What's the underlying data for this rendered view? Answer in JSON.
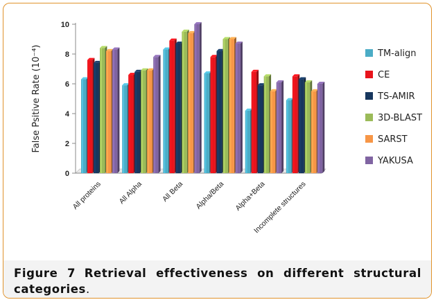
{
  "chart_data": {
    "type": "bar",
    "ylabel": "False Psitive Rate (10⁻⁴)",
    "ylim": [
      0,
      10
    ],
    "yticks": [
      "0",
      "2",
      "4",
      "6",
      "8",
      "10"
    ],
    "grid": false,
    "legend_position": "right",
    "categories": [
      "All proteins",
      "All Alpha",
      "All Beta",
      "Alpha/Beta",
      "Alpha+Beta",
      "Incomplete structures"
    ],
    "series": [
      {
        "name": "TM-align",
        "color": "#4bacc6",
        "values": [
          6.3,
          5.9,
          8.3,
          6.7,
          4.2,
          4.9
        ]
      },
      {
        "name": "CE",
        "color": "#e8141c",
        "values": [
          7.6,
          6.6,
          8.9,
          7.8,
          6.8,
          6.5
        ]
      },
      {
        "name": "TS-AMIR",
        "color": "#17375e",
        "values": [
          7.4,
          6.8,
          8.7,
          8.2,
          5.9,
          6.3
        ]
      },
      {
        "name": "3D-BLAST",
        "color": "#9bbb59",
        "values": [
          8.4,
          6.9,
          9.5,
          9.0,
          6.5,
          6.1
        ]
      },
      {
        "name": "SARST",
        "color": "#f79646",
        "values": [
          8.2,
          6.9,
          9.4,
          9.0,
          5.5,
          5.5
        ]
      },
      {
        "name": "YAKUSA",
        "color": "#8064a2",
        "values": [
          8.3,
          7.8,
          10.0,
          8.7,
          6.1,
          6.0
        ]
      }
    ]
  },
  "caption": {
    "label": "Figure 7",
    "text": "Retrieval effectiveness on different structural categories",
    "end": "."
  }
}
